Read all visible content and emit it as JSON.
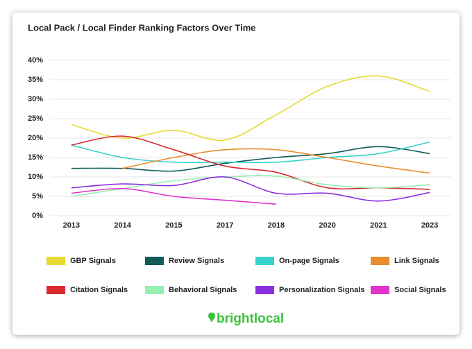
{
  "chart_data": {
    "type": "line",
    "title": "Local Pack / Local Finder Ranking Factors Over Time",
    "categories": [
      "2013",
      "2014",
      "2015",
      "2017",
      "2018",
      "2020",
      "2021",
      "2023"
    ],
    "ylim": [
      0,
      40
    ],
    "yticks": [
      {
        "value": 0,
        "label": "0%"
      },
      {
        "value": 5,
        "label": "5%"
      },
      {
        "value": 10,
        "label": "10%"
      },
      {
        "value": 15,
        "label": "15%"
      },
      {
        "value": 20,
        "label": "20%"
      },
      {
        "value": 25,
        "label": "25%"
      },
      {
        "value": 30,
        "label": "30%"
      },
      {
        "value": 35,
        "label": "35%"
      },
      {
        "value": 40,
        "label": "40%"
      }
    ],
    "grid": true,
    "series": [
      {
        "name": "GBP Signals",
        "color": "#e6da35",
        "values": [
          23.5,
          20,
          22,
          19.5,
          26,
          33.3,
          36,
          32
        ]
      },
      {
        "name": "Review Signals",
        "color": "#0f5b58",
        "values": [
          12.2,
          12.2,
          11.5,
          13.5,
          15,
          16,
          17.8,
          16
        ]
      },
      {
        "name": "On-page Signals",
        "color": "#38d2cd",
        "values": [
          18.2,
          15,
          13.8,
          13.8,
          13.8,
          15,
          16,
          19
        ]
      },
      {
        "name": "Link Signals",
        "color": "#e98d2c",
        "values": [
          null,
          12.2,
          15,
          17,
          17,
          15,
          12.8,
          11
        ]
      },
      {
        "name": "Citation Signals",
        "color": "#da2a30",
        "values": [
          18.2,
          20.5,
          17,
          12.8,
          11.2,
          7.2,
          7.2,
          6.8
        ]
      },
      {
        "name": "Behavioral Signals",
        "color": "#96f0b2",
        "values": [
          5,
          7,
          9,
          10,
          10.2,
          8,
          7.2,
          8
        ]
      },
      {
        "name": "Personalization Signals",
        "color": "#8b2ee0",
        "values": [
          7.2,
          8.2,
          7.8,
          10,
          5.8,
          5.8,
          3.8,
          6
        ]
      },
      {
        "name": "Social Signals",
        "color": "#e035cb",
        "values": [
          5.8,
          7,
          5,
          4,
          3,
          null,
          null,
          null
        ]
      }
    ]
  },
  "footer": {
    "logo": "brightlocal"
  }
}
